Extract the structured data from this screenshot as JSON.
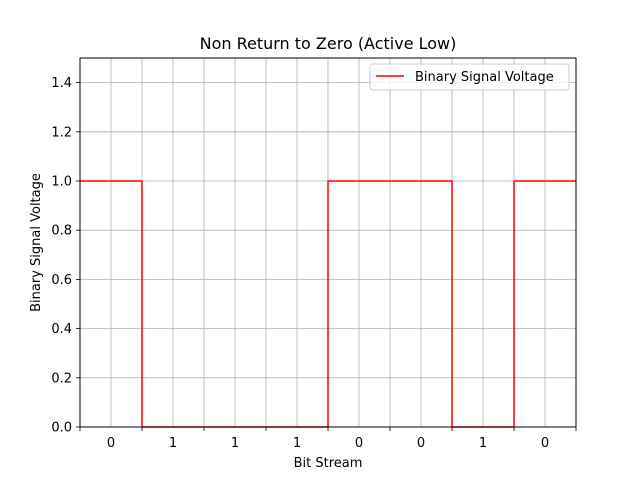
{
  "chart_data": {
    "type": "line",
    "title": "Non Return to Zero (Active Low)",
    "xlabel": "Bit Stream",
    "ylabel": "Binary Signal Voltage",
    "bits": [
      "0",
      "1",
      "1",
      "1",
      "0",
      "0",
      "1",
      "0"
    ],
    "ylim": [
      0.0,
      1.5
    ],
    "yticks": [
      "0.0",
      "0.2",
      "0.4",
      "0.6",
      "0.8",
      "1.0",
      "1.2",
      "1.4"
    ],
    "ytick_values": [
      0.0,
      0.2,
      0.4,
      0.6,
      0.8,
      1.0,
      1.2,
      1.4
    ],
    "series": [
      {
        "name": "Binary Signal Voltage",
        "color": "#ff0000",
        "style": "step",
        "x": [
          0,
          1,
          2,
          3,
          4,
          5,
          6,
          7
        ],
        "values": [
          1,
          0,
          0,
          0,
          1,
          1,
          0,
          1
        ]
      }
    ],
    "grid": true,
    "legend": "upper-right"
  }
}
